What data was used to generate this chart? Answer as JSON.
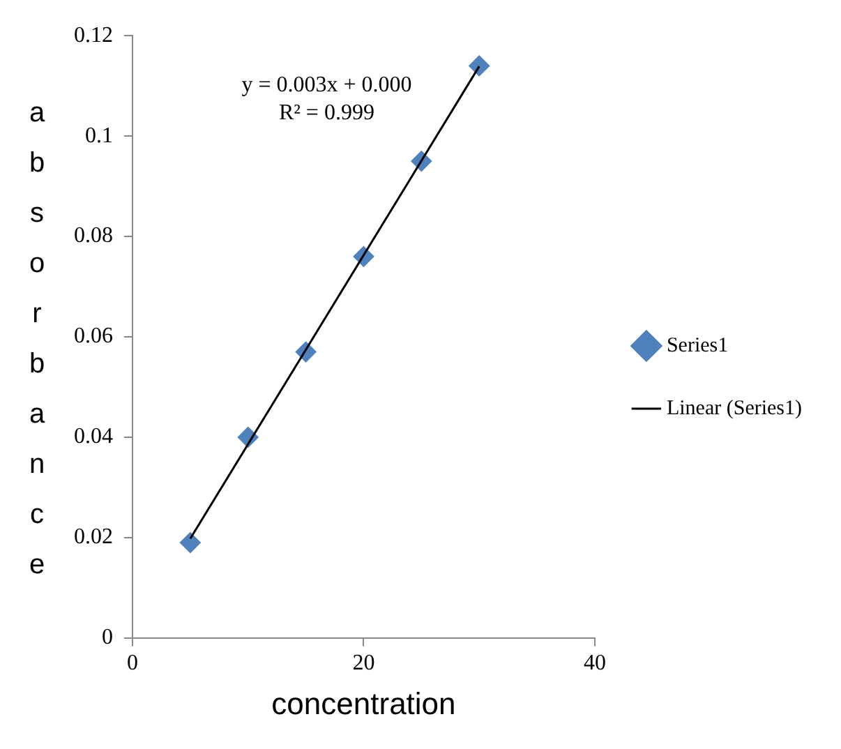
{
  "chart_data": {
    "type": "scatter",
    "xlabel": "concentration",
    "ylabel": "absorbance",
    "x": [
      5,
      10,
      15,
      20,
      25,
      30
    ],
    "series": [
      {
        "name": "Series1",
        "type": "scatter",
        "color": "#4f81bd",
        "marker": "diamond",
        "values": [
          0.019,
          0.04,
          0.057,
          0.076,
          0.095,
          0.114
        ]
      },
      {
        "name": "Linear (Series1)",
        "type": "line",
        "color": "#000000",
        "x": [
          5,
          30
        ],
        "values": [
          0.0198,
          0.1139
        ],
        "marker": "none",
        "line_style": "solid"
      }
    ],
    "annotations": [
      "y = 0.003x + 0.000",
      "R² = 0.999"
    ],
    "xlim": [
      0,
      40
    ],
    "xticks": [
      0,
      20,
      40
    ],
    "ylim": [
      0,
      0.12
    ],
    "yticks": [
      0,
      0.02,
      0.04,
      0.06,
      0.08,
      0.1,
      0.12
    ],
    "grid": false,
    "legend": "right"
  }
}
